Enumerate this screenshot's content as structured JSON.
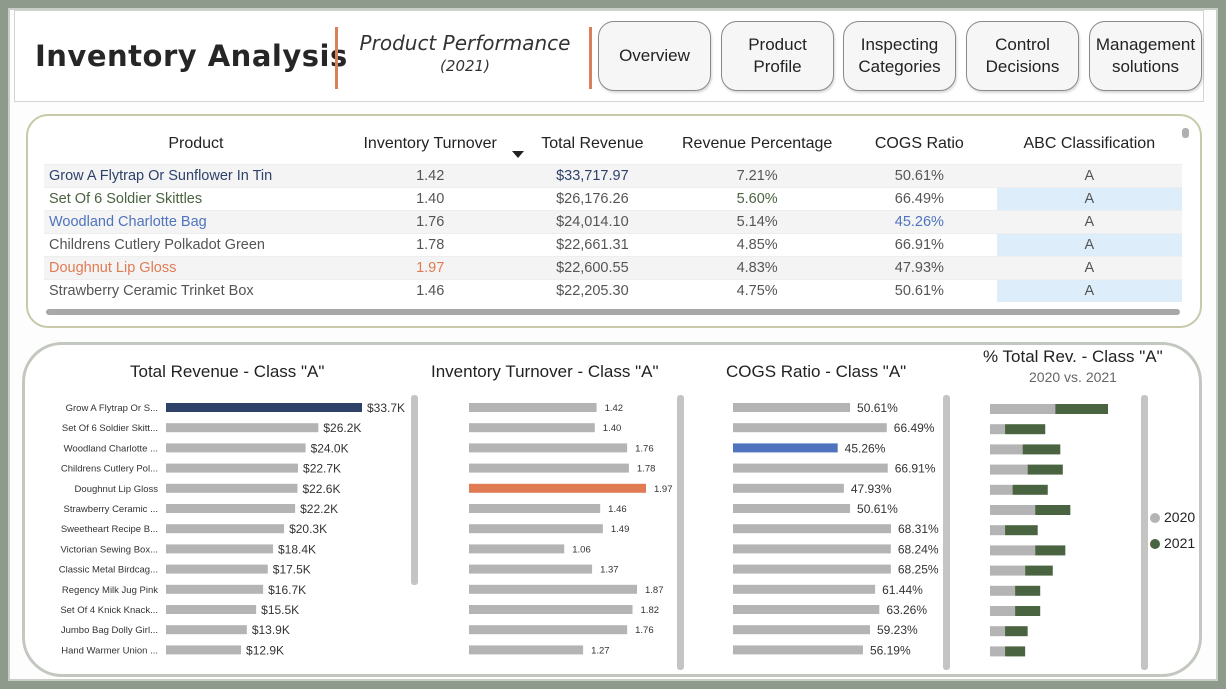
{
  "header": {
    "title": "Inventory Analysis",
    "subtitle_line1": "Product Performance",
    "subtitle_line2": "(2021)",
    "nav": [
      {
        "label": "Overview"
      },
      {
        "label": "Product Profile"
      },
      {
        "label": "Inspecting Categories"
      },
      {
        "label": "Control Decisions"
      },
      {
        "label": "Management solutions"
      }
    ]
  },
  "table": {
    "columns": [
      "Product",
      "Inventory Turnover",
      "Total Revenue",
      "Revenue Percentage",
      "COGS Ratio",
      "ABC Classification"
    ],
    "rows": [
      {
        "product": "Grow A Flytrap Or Sunflower In Tin",
        "turnover": "1.42",
        "revenue": "$33,717.97",
        "pct": "7.21%",
        "cogs": "50.61%",
        "abc": "A"
      },
      {
        "product": "Set Of 6 Soldier Skittles",
        "turnover": "1.40",
        "revenue": "$26,176.26",
        "pct": "5.60%",
        "cogs": "66.49%",
        "abc": "A"
      },
      {
        "product": "Woodland Charlotte Bag",
        "turnover": "1.76",
        "revenue": "$24,014.10",
        "pct": "5.14%",
        "cogs": "45.26%",
        "abc": "A"
      },
      {
        "product": "Childrens Cutlery Polkadot Green",
        "turnover": "1.78",
        "revenue": "$22,661.31",
        "pct": "4.85%",
        "cogs": "66.91%",
        "abc": "A"
      },
      {
        "product": "Doughnut Lip Gloss",
        "turnover": "1.97",
        "revenue": "$22,600.55",
        "pct": "4.83%",
        "cogs": "47.93%",
        "abc": "A"
      },
      {
        "product": "Strawberry Ceramic Trinket Box",
        "turnover": "1.46",
        "revenue": "$22,205.30",
        "pct": "4.75%",
        "cogs": "50.61%",
        "abc": "A"
      }
    ]
  },
  "colors": {
    "navy": "#2e4269",
    "gray_bar": "#b4b4b4",
    "orange": "#e07b54",
    "blue": "#4f73bd",
    "green_dark": "#4a6340",
    "accent_divider": "#d9805a"
  },
  "chart_data": [
    {
      "type": "bar",
      "title": "Total Revenue - Class \"A\"",
      "orientation": "horizontal",
      "categories": [
        "Grow A Flytrap Or S...",
        "Set Of 6 Soldier Skitt...",
        "Woodland Charlotte ...",
        "Childrens Cutlery Pol...",
        "Doughnut Lip Gloss",
        "Strawberry Ceramic ...",
        "Sweetheart Recipe B...",
        "Victorian Sewing Box...",
        "Classic Metal Birdcag...",
        "Regency Milk Jug Pink",
        "Set Of 4 Knick Knack...",
        "Jumbo Bag Dolly Girl...",
        "Hand Warmer Union ..."
      ],
      "values": [
        33.7,
        26.2,
        24.0,
        22.7,
        22.6,
        22.2,
        20.3,
        18.4,
        17.5,
        16.7,
        15.5,
        13.9,
        12.9
      ],
      "labels": [
        "$33.7K",
        "$26.2K",
        "$24.0K",
        "$22.7K",
        "$22.6K",
        "$22.2K",
        "$20.3K",
        "$18.4K",
        "$17.5K",
        "$16.7K",
        "$15.5K",
        "$13.9K",
        "$12.9K"
      ],
      "highlight_index": 0,
      "highlight_color": "#2e4269",
      "xlim": [
        0,
        33.7
      ]
    },
    {
      "type": "bar",
      "title": "Inventory Turnover - Class \"A\"",
      "orientation": "horizontal",
      "values": [
        1.42,
        1.4,
        1.76,
        1.78,
        1.97,
        1.46,
        1.49,
        1.06,
        1.37,
        1.87,
        1.82,
        1.76,
        1.27
      ],
      "labels": [
        "1.42",
        "1.40",
        "1.76",
        "1.78",
        "1.97",
        "1.46",
        "1.49",
        "1.06",
        "1.37",
        "1.87",
        "1.82",
        "1.76",
        "1.27"
      ],
      "highlight_index": 4,
      "highlight_color": "#e07b54",
      "xlim": [
        0,
        1.97
      ]
    },
    {
      "type": "bar",
      "title": "COGS Ratio - Class \"A\"",
      "orientation": "horizontal",
      "values": [
        50.61,
        66.49,
        45.26,
        66.91,
        47.93,
        50.61,
        68.31,
        68.24,
        68.25,
        61.44,
        63.26,
        59.23,
        56.19
      ],
      "labels": [
        "50.61%",
        "66.49%",
        "45.26%",
        "66.91%",
        "47.93%",
        "50.61%",
        "68.31%",
        "68.24%",
        "68.25%",
        "61.44%",
        "63.26%",
        "59.23%",
        "56.19%"
      ],
      "highlight_index": 2,
      "highlight_color": "#4f73bd",
      "xlim": [
        0,
        68.31
      ]
    },
    {
      "type": "bar",
      "title": "% Total Rev. - Class \"A\"",
      "subtitle": "2020 vs. 2021",
      "orientation": "horizontal",
      "stacked": true,
      "series": [
        {
          "name": "2020",
          "color": "#b4b4b4",
          "values": [
            2.6,
            0.6,
            1.3,
            1.5,
            0.9,
            1.8,
            0.6,
            1.8,
            1.4,
            1.0,
            1.0,
            0.6,
            0.6
          ]
        },
        {
          "name": "2021",
          "color": "#4a6340",
          "values": [
            2.1,
            1.6,
            1.5,
            1.4,
            1.4,
            1.4,
            1.3,
            1.2,
            1.1,
            1.0,
            1.0,
            0.9,
            0.8
          ]
        }
      ],
      "legend_position": "right",
      "xlim": [
        0,
        4.7
      ]
    }
  ]
}
